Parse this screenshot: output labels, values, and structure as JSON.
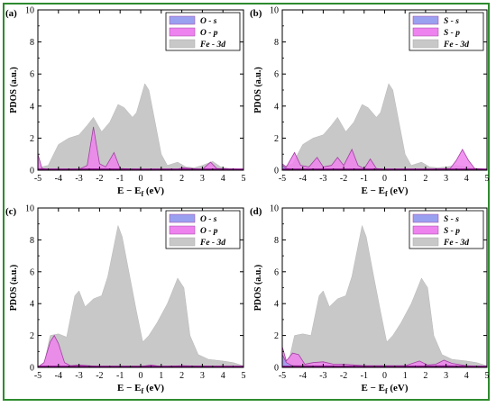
{
  "chart_data": [
    {
      "type": "area",
      "panel_label": "(a)",
      "xlabel": "E − E",
      "xlabel_sub": "f",
      "xlabel_unit": " (eV)",
      "ylabel": "PDOS (a.u.)",
      "xlim": [
        -5,
        5
      ],
      "ylim": [
        0,
        10
      ],
      "xticks": [
        -5,
        -4,
        -3,
        -2,
        -1,
        0,
        1,
        2,
        3,
        4,
        5
      ],
      "yticks": [
        0,
        2,
        4,
        6,
        8,
        10
      ],
      "legend_position": "top-right",
      "grid": false,
      "series": [
        {
          "name": "Fe - 3d",
          "color": "#c8c8c8",
          "points": [
            [
              -5,
              0.15
            ],
            [
              -4.5,
              0.3
            ],
            [
              -4.0,
              1.6
            ],
            [
              -3.5,
              2.0
            ],
            [
              -3.0,
              2.2
            ],
            [
              -2.6,
              2.8
            ],
            [
              -2.3,
              3.3
            ],
            [
              -1.9,
              2.4
            ],
            [
              -1.5,
              3.0
            ],
            [
              -1.1,
              4.1
            ],
            [
              -0.8,
              3.9
            ],
            [
              -0.4,
              3.3
            ],
            [
              -0.2,
              3.6
            ],
            [
              0.2,
              5.4
            ],
            [
              0.4,
              5.0
            ],
            [
              0.7,
              3.0
            ],
            [
              1.0,
              1.0
            ],
            [
              1.3,
              0.3
            ],
            [
              1.8,
              0.5
            ],
            [
              2.2,
              0.2
            ],
            [
              2.6,
              0.15
            ],
            [
              3.0,
              0.3
            ],
            [
              3.5,
              0.55
            ],
            [
              3.9,
              0.2
            ],
            [
              4.3,
              0.1
            ],
            [
              5,
              0.05
            ]
          ]
        },
        {
          "name": "O - p",
          "color": "#ee82ee",
          "points": [
            [
              -5,
              1.0
            ],
            [
              -4.8,
              0.1
            ],
            [
              -4.5,
              0.05
            ],
            [
              -3.0,
              0.05
            ],
            [
              -2.6,
              0.3
            ],
            [
              -2.3,
              2.7
            ],
            [
              -2.0,
              0.4
            ],
            [
              -1.7,
              0.2
            ],
            [
              -1.3,
              1.1
            ],
            [
              -1.0,
              0.1
            ],
            [
              0,
              0.05
            ],
            [
              1.8,
              0.05
            ],
            [
              2.0,
              0.15
            ],
            [
              3.0,
              0.05
            ],
            [
              3.4,
              0.5
            ],
            [
              3.7,
              0.1
            ],
            [
              5,
              0.02
            ]
          ]
        },
        {
          "name": "O - s",
          "color": "#9aa0f0",
          "points": [
            [
              -5,
              0.05
            ],
            [
              -4.5,
              0.05
            ],
            [
              -2.3,
              0.08
            ],
            [
              0,
              0.05
            ],
            [
              5,
              0.02
            ]
          ]
        }
      ]
    },
    {
      "type": "area",
      "panel_label": "(b)",
      "xlabel": "E − E",
      "xlabel_sub": "f",
      "xlabel_unit": " (eV)",
      "ylabel": "PDOS (a.u.)",
      "xlim": [
        -5,
        5
      ],
      "ylim": [
        0,
        10
      ],
      "xticks": [
        -5,
        -4,
        -3,
        -2,
        -1,
        0,
        1,
        2,
        3,
        4,
        5
      ],
      "yticks": [
        0,
        2,
        4,
        6,
        8,
        10
      ],
      "legend_position": "top-right",
      "grid": false,
      "series": [
        {
          "name": "Fe - 3d",
          "color": "#c8c8c8",
          "points": [
            [
              -5,
              0.2
            ],
            [
              -4.5,
              0.4
            ],
            [
              -4.0,
              1.6
            ],
            [
              -3.5,
              2.0
            ],
            [
              -3.0,
              2.2
            ],
            [
              -2.6,
              2.8
            ],
            [
              -2.3,
              3.3
            ],
            [
              -1.9,
              2.4
            ],
            [
              -1.5,
              3.0
            ],
            [
              -1.1,
              4.1
            ],
            [
              -0.8,
              3.9
            ],
            [
              -0.4,
              3.3
            ],
            [
              -0.2,
              3.6
            ],
            [
              0.2,
              5.4
            ],
            [
              0.4,
              5.0
            ],
            [
              0.7,
              3.0
            ],
            [
              1.0,
              1.0
            ],
            [
              1.3,
              0.3
            ],
            [
              1.8,
              0.5
            ],
            [
              2.2,
              0.2
            ],
            [
              2.6,
              0.15
            ],
            [
              3.0,
              0.2
            ],
            [
              3.5,
              0.3
            ],
            [
              4.0,
              0.2
            ],
            [
              4.5,
              0.1
            ],
            [
              5,
              0.05
            ]
          ]
        },
        {
          "name": "S - p",
          "color": "#ee82ee",
          "points": [
            [
              -5,
              0.4
            ],
            [
              -4.8,
              0.2
            ],
            [
              -4.4,
              1.1
            ],
            [
              -4.1,
              0.3
            ],
            [
              -3.7,
              0.2
            ],
            [
              -3.3,
              0.8
            ],
            [
              -3.0,
              0.2
            ],
            [
              -2.6,
              0.3
            ],
            [
              -2.3,
              0.8
            ],
            [
              -2.0,
              0.3
            ],
            [
              -1.6,
              1.3
            ],
            [
              -1.3,
              0.3
            ],
            [
              -1.0,
              0.1
            ],
            [
              -0.7,
              0.7
            ],
            [
              -0.4,
              0.1
            ],
            [
              0,
              0.05
            ],
            [
              2.0,
              0.05
            ],
            [
              3.2,
              0.1
            ],
            [
              3.5,
              0.6
            ],
            [
              3.8,
              1.3
            ],
            [
              4.1,
              0.6
            ],
            [
              4.4,
              0.1
            ],
            [
              5,
              0.05
            ]
          ]
        },
        {
          "name": "S - s",
          "color": "#9aa0f0",
          "points": [
            [
              -5,
              0.3
            ],
            [
              -4.8,
              0.1
            ],
            [
              -4.4,
              0.05
            ],
            [
              0,
              0.02
            ],
            [
              5,
              0.02
            ]
          ]
        }
      ]
    },
    {
      "type": "area",
      "panel_label": "(c)",
      "xlabel": "E − E",
      "xlabel_sub": "f",
      "xlabel_unit": " (eV)",
      "ylabel": "PDOS (a.u.)",
      "xlim": [
        -5,
        5
      ],
      "ylim": [
        0,
        10
      ],
      "xticks": [
        -5,
        -4,
        -3,
        -2,
        -1,
        0,
        1,
        2,
        3,
        4,
        5
      ],
      "yticks": [
        0,
        2,
        4,
        6,
        8,
        10
      ],
      "legend_position": "top-right",
      "grid": false,
      "series": [
        {
          "name": "Fe - 3d",
          "color": "#c8c8c8",
          "points": [
            [
              -5,
              0.05
            ],
            [
              -4.7,
              0.2
            ],
            [
              -4.4,
              2.0
            ],
            [
              -4.0,
              2.1
            ],
            [
              -3.6,
              1.9
            ],
            [
              -3.2,
              4.5
            ],
            [
              -3.0,
              4.8
            ],
            [
              -2.7,
              3.8
            ],
            [
              -2.3,
              4.3
            ],
            [
              -1.9,
              4.5
            ],
            [
              -1.6,
              5.7
            ],
            [
              -1.1,
              8.9
            ],
            [
              -0.9,
              8.2
            ],
            [
              -0.5,
              5.5
            ],
            [
              -0.2,
              3.5
            ],
            [
              0.1,
              1.6
            ],
            [
              0.4,
              2.0
            ],
            [
              0.8,
              2.8
            ],
            [
              1.3,
              4.0
            ],
            [
              1.8,
              5.6
            ],
            [
              2.1,
              5.0
            ],
            [
              2.4,
              2.0
            ],
            [
              2.8,
              0.8
            ],
            [
              3.3,
              0.5
            ],
            [
              4.0,
              0.4
            ],
            [
              4.5,
              0.3
            ],
            [
              5,
              0.1
            ]
          ]
        },
        {
          "name": "O - p",
          "color": "#ee82ee",
          "points": [
            [
              -5,
              0.02
            ],
            [
              -4.7,
              0.3
            ],
            [
              -4.4,
              1.6
            ],
            [
              -4.2,
              2.0
            ],
            [
              -4.0,
              1.5
            ],
            [
              -3.7,
              0.3
            ],
            [
              -3.4,
              0.1
            ],
            [
              -3.0,
              0.15
            ],
            [
              -2.0,
              0.05
            ],
            [
              0,
              0.05
            ],
            [
              0.5,
              0.15
            ],
            [
              1.0,
              0.05
            ],
            [
              2.0,
              0.1
            ],
            [
              5,
              0.02
            ]
          ]
        },
        {
          "name": "O - s",
          "color": "#9aa0f0",
          "points": [
            [
              -5,
              0.02
            ],
            [
              -4.2,
              0.05
            ],
            [
              5,
              0.02
            ]
          ]
        }
      ]
    },
    {
      "type": "area",
      "panel_label": "(d)",
      "xlabel": "E − E",
      "xlabel_sub": "f",
      "xlabel_unit": " (eV)",
      "ylabel": "PDOS (a.u.)",
      "xlim": [
        -5,
        5
      ],
      "ylim": [
        0,
        10
      ],
      "xticks": [
        -5,
        -4,
        -3,
        -2,
        -1,
        0,
        1,
        2,
        3,
        4,
        5
      ],
      "yticks": [
        0,
        2,
        4,
        6,
        8,
        10
      ],
      "legend_position": "top-right",
      "grid": false,
      "series": [
        {
          "name": "Fe - 3d",
          "color": "#c8c8c8",
          "points": [
            [
              -5,
              0.8
            ],
            [
              -4.7,
              0.3
            ],
            [
              -4.4,
              2.0
            ],
            [
              -4.0,
              2.1
            ],
            [
              -3.6,
              2.0
            ],
            [
              -3.2,
              4.5
            ],
            [
              -3.0,
              4.8
            ],
            [
              -2.7,
              3.8
            ],
            [
              -2.3,
              4.3
            ],
            [
              -1.9,
              4.5
            ],
            [
              -1.6,
              5.7
            ],
            [
              -1.1,
              8.9
            ],
            [
              -0.9,
              8.2
            ],
            [
              -0.5,
              5.5
            ],
            [
              -0.2,
              3.5
            ],
            [
              0.1,
              1.6
            ],
            [
              0.4,
              2.0
            ],
            [
              0.8,
              2.8
            ],
            [
              1.3,
              4.0
            ],
            [
              1.8,
              5.6
            ],
            [
              2.1,
              5.0
            ],
            [
              2.4,
              2.0
            ],
            [
              2.8,
              0.8
            ],
            [
              3.3,
              0.5
            ],
            [
              4.0,
              0.4
            ],
            [
              4.5,
              0.3
            ],
            [
              5,
              0.1
            ]
          ]
        },
        {
          "name": "S - p",
          "color": "#ee82ee",
          "points": [
            [
              -5,
              1.3
            ],
            [
              -4.8,
              0.4
            ],
            [
              -4.5,
              0.9
            ],
            [
              -4.2,
              0.8
            ],
            [
              -3.9,
              0.2
            ],
            [
              -3.5,
              0.3
            ],
            [
              -3.0,
              0.35
            ],
            [
              -2.5,
              0.2
            ],
            [
              -2.0,
              0.2
            ],
            [
              -1.5,
              0.15
            ],
            [
              -1.0,
              0.1
            ],
            [
              0,
              0.1
            ],
            [
              1.0,
              0.1
            ],
            [
              1.7,
              0.4
            ],
            [
              2.1,
              0.15
            ],
            [
              2.5,
              0.2
            ],
            [
              2.9,
              0.45
            ],
            [
              3.3,
              0.25
            ],
            [
              4.0,
              0.1
            ],
            [
              5,
              0.05
            ]
          ]
        },
        {
          "name": "S - s",
          "color": "#9aa0f0",
          "points": [
            [
              -5,
              0.8
            ],
            [
              -4.8,
              0.3
            ],
            [
              -4.5,
              0.1
            ],
            [
              0,
              0.05
            ],
            [
              3.0,
              0.1
            ],
            [
              5,
              0.05
            ]
          ]
        }
      ]
    }
  ]
}
